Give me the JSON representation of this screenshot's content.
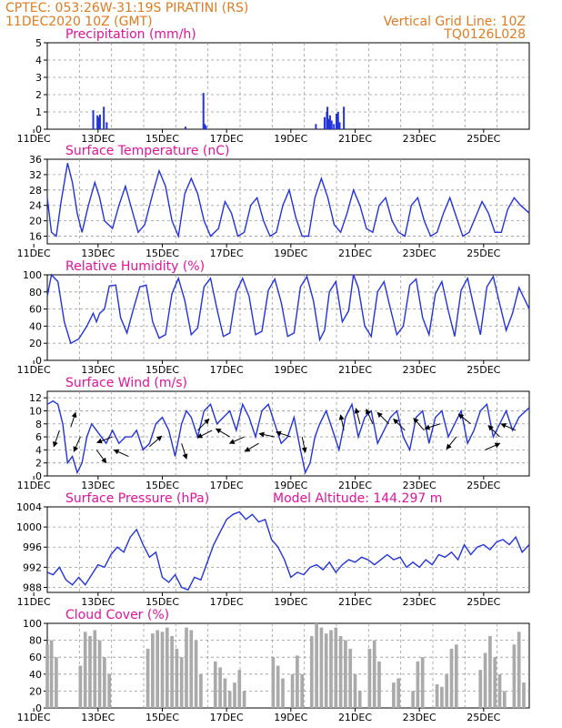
{
  "header": {
    "line1_left": "CPTEC:   053:26W-31:19S   PIRATINI (RS)",
    "line2_left": "11DEC2020 10Z (GMT)",
    "line1_right": "Vertical Grid Line: 10Z",
    "line2_right": "TQ0126L028"
  },
  "colors": {
    "header": "#e07b20",
    "title": "#e0139a",
    "line": "#2233dd",
    "bar": "#2233dd",
    "cloud": "#aaaaaa",
    "arrow": "#000000",
    "grid": "#999999"
  },
  "x_tick_labels": [
    "11DEC",
    "13DEC",
    "15DEC",
    "17DEC",
    "19DEC",
    "21DEC",
    "23DEC",
    "25DEC"
  ],
  "x_tick_days": [
    11,
    13,
    15,
    17,
    19,
    21,
    23,
    25
  ],
  "x_range_days": [
    11.42,
    26.42
  ],
  "panels": {
    "precip": {
      "title": "Precipitation (mm/h)",
      "yticks": [
        "0",
        "1",
        "2",
        "3",
        "4",
        "5"
      ],
      "ylim": [
        0,
        5
      ],
      "chart_data": {
        "type": "bar",
        "x_days": [
          12.85,
          12.98,
          13.03,
          13.06,
          13.18,
          13.27,
          15.72,
          16.28,
          16.32,
          16.36,
          19.78,
          20.05,
          20.12,
          20.14,
          20.18,
          20.22,
          20.27,
          20.34,
          20.42,
          20.47,
          20.52,
          20.65
        ],
        "values": [
          1.1,
          0.8,
          0.7,
          0.85,
          1.3,
          0.4,
          0.15,
          2.1,
          0.3,
          0.2,
          0.3,
          0.7,
          1.0,
          1.3,
          0.6,
          0.8,
          0.5,
          0.3,
          0.9,
          1.0,
          0.4,
          1.3
        ]
      }
    },
    "temp": {
      "title": "Surface Temperature (nC)",
      "yticks": [
        "16",
        "20",
        "24",
        "28",
        "32",
        "36"
      ],
      "ylim": [
        14,
        36
      ],
      "chart_data": {
        "type": "line",
        "x_days": [
          11.42,
          11.55,
          11.7,
          11.85,
          12.05,
          12.2,
          12.35,
          12.5,
          12.7,
          12.9,
          13.05,
          13.2,
          13.45,
          13.65,
          13.85,
          14.05,
          14.25,
          14.45,
          14.7,
          14.9,
          15.1,
          15.3,
          15.5,
          15.7,
          15.9,
          16.1,
          16.3,
          16.5,
          16.75,
          16.95,
          17.15,
          17.35,
          17.55,
          17.75,
          17.95,
          18.15,
          18.35,
          18.55,
          18.75,
          18.95,
          19.15,
          19.35,
          19.55,
          19.75,
          19.95,
          20.15,
          20.35,
          20.55,
          20.75,
          20.95,
          21.15,
          21.35,
          21.55,
          21.75,
          21.95,
          22.15,
          22.35,
          22.55,
          22.75,
          22.95,
          23.15,
          23.35,
          23.55,
          23.75,
          23.95,
          24.15,
          24.35,
          24.55,
          24.75,
          24.95,
          25.15,
          25.35,
          25.55,
          25.75,
          25.95,
          26.15,
          26.42
        ],
        "values": [
          26,
          17,
          16,
          25,
          35,
          30,
          22,
          17,
          24,
          30,
          26,
          20,
          18,
          24,
          29,
          23,
          17,
          19,
          27,
          33,
          29,
          20,
          16,
          27,
          31,
          27,
          20,
          16,
          18,
          25,
          22,
          16,
          17,
          24,
          26,
          20,
          16,
          17,
          24,
          28,
          21,
          16,
          16,
          26,
          31,
          26,
          19,
          17,
          22,
          28,
          24,
          18,
          17,
          24,
          26,
          20,
          17,
          16,
          24,
          26,
          20,
          16,
          17,
          22,
          26,
          21,
          16,
          17,
          21,
          25,
          22,
          17,
          17,
          23,
          26,
          24,
          22
        ]
      }
    },
    "rh": {
      "title": "Relative Humidity (%)",
      "yticks": [
        "0",
        "20",
        "40",
        "60",
        "80",
        "100"
      ],
      "ylim": [
        0,
        100
      ],
      "chart_data": {
        "type": "line",
        "x_days": [
          11.42,
          11.55,
          11.75,
          11.95,
          12.15,
          12.4,
          12.65,
          12.85,
          12.95,
          13.05,
          13.2,
          13.35,
          13.55,
          13.7,
          13.9,
          14.1,
          14.3,
          14.5,
          14.7,
          14.9,
          15.1,
          15.3,
          15.5,
          15.7,
          15.9,
          16.1,
          16.3,
          16.5,
          16.7,
          16.9,
          17.1,
          17.3,
          17.5,
          17.7,
          17.9,
          18.1,
          18.3,
          18.5,
          18.7,
          18.9,
          19.1,
          19.3,
          19.5,
          19.7,
          19.9,
          20.05,
          20.2,
          20.4,
          20.6,
          20.8,
          20.95,
          21.1,
          21.3,
          21.5,
          21.7,
          21.9,
          22.1,
          22.3,
          22.5,
          22.7,
          22.9,
          23.1,
          23.3,
          23.5,
          23.7,
          23.9,
          24.1,
          24.3,
          24.5,
          24.7,
          24.9,
          25.1,
          25.3,
          25.5,
          25.7,
          25.9,
          26.1,
          26.42
        ],
        "values": [
          75,
          100,
          92,
          45,
          20,
          25,
          40,
          55,
          45,
          55,
          60,
          87,
          88,
          50,
          32,
          60,
          86,
          88,
          45,
          26,
          30,
          78,
          96,
          70,
          30,
          38,
          86,
          96,
          60,
          28,
          32,
          80,
          96,
          75,
          30,
          34,
          82,
          95,
          68,
          28,
          32,
          86,
          98,
          70,
          24,
          35,
          80,
          92,
          45,
          58,
          100,
          85,
          40,
          28,
          80,
          92,
          60,
          30,
          40,
          88,
          95,
          50,
          30,
          78,
          92,
          58,
          28,
          82,
          96,
          62,
          30,
          86,
          98,
          66,
          35,
          55,
          85,
          60
        ]
      }
    },
    "wind": {
      "title": "Surface Wind (m/s)",
      "yticks": [
        "0",
        "2",
        "4",
        "6",
        "8",
        "10",
        "12"
      ],
      "ylim": [
        0,
        13
      ],
      "chart_data": {
        "type": "line",
        "x_days": [
          11.42,
          11.6,
          11.75,
          11.9,
          12.05,
          12.2,
          12.35,
          12.5,
          12.65,
          12.8,
          12.95,
          13.1,
          13.25,
          13.45,
          13.65,
          13.85,
          14.05,
          14.2,
          14.4,
          14.6,
          14.8,
          15.0,
          15.2,
          15.4,
          15.6,
          15.75,
          15.9,
          16.1,
          16.3,
          16.5,
          16.7,
          16.9,
          17.1,
          17.3,
          17.5,
          17.7,
          17.9,
          18.1,
          18.3,
          18.5,
          18.7,
          18.9,
          19.1,
          19.3,
          19.45,
          19.6,
          19.75,
          19.9,
          20.1,
          20.3,
          20.5,
          20.7,
          20.9,
          21.1,
          21.3,
          21.5,
          21.7,
          21.9,
          22.1,
          22.3,
          22.5,
          22.7,
          22.9,
          23.1,
          23.3,
          23.5,
          23.7,
          23.9,
          24.1,
          24.3,
          24.5,
          24.7,
          24.9,
          25.1,
          25.3,
          25.5,
          25.7,
          25.9,
          26.1,
          26.42
        ],
        "values": [
          11,
          11.5,
          11,
          8,
          2,
          3,
          0.5,
          2,
          6,
          8,
          7,
          6,
          5,
          7,
          5,
          6,
          6,
          7,
          4,
          5,
          8,
          9,
          7,
          3,
          8,
          10,
          9,
          6,
          10,
          11,
          8,
          9,
          10,
          7,
          11,
          9,
          6,
          10,
          11,
          8,
          5,
          6,
          9,
          4,
          0.5,
          2,
          6,
          8,
          10,
          7,
          4,
          9,
          11,
          6,
          9,
          10,
          5,
          7,
          9,
          10,
          6,
          4,
          9,
          10,
          5,
          9,
          10,
          6,
          8,
          10,
          5,
          7,
          10,
          11,
          6,
          8,
          10,
          7,
          9,
          10.5
        ],
        "arrows": [
          {
            "x": 11.8,
            "y": 7,
            "dx": -0.35,
            "dy": 1
          },
          {
            "x": 12.15,
            "y": 7.5,
            "dx": 0.3,
            "dy": -0.9
          },
          {
            "x": 12.45,
            "y": 6,
            "dx": -0.4,
            "dy": 0.9
          },
          {
            "x": 12.95,
            "y": 4,
            "dx": 0.6,
            "dy": 0.8
          },
          {
            "x": 13.45,
            "y": 6,
            "dx": -0.95,
            "dy": 0.35
          },
          {
            "x": 13.95,
            "y": 3,
            "dx": -0.9,
            "dy": -0.4
          },
          {
            "x": 14.6,
            "y": 4.5,
            "dx": 0.75,
            "dy": -0.65
          },
          {
            "x": 15.6,
            "y": 5,
            "dx": 0.3,
            "dy": 0.95
          },
          {
            "x": 16.1,
            "y": 7,
            "dx": 0.7,
            "dy": -0.7
          },
          {
            "x": 16.55,
            "y": 7,
            "dx": -0.9,
            "dy": 0.45
          },
          {
            "x": 17.1,
            "y": 6,
            "dx": -0.85,
            "dy": -0.5
          },
          {
            "x": 17.55,
            "y": 6,
            "dx": -0.9,
            "dy": 0.4
          },
          {
            "x": 18.0,
            "y": 5,
            "dx": -0.85,
            "dy": 0.5
          },
          {
            "x": 18.5,
            "y": 6,
            "dx": -0.95,
            "dy": -0.2
          },
          {
            "x": 19.0,
            "y": 6,
            "dx": -0.9,
            "dy": -0.3
          },
          {
            "x": 19.35,
            "y": 6,
            "dx": 0.2,
            "dy": 0.95
          },
          {
            "x": 20.65,
            "y": 7,
            "dx": -0.2,
            "dy": -0.95
          },
          {
            "x": 21.15,
            "y": 8,
            "dx": -0.25,
            "dy": -0.95
          },
          {
            "x": 21.55,
            "y": 8,
            "dx": -0.4,
            "dy": -0.9
          },
          {
            "x": 22.05,
            "y": 8,
            "dx": -0.7,
            "dy": -0.7
          },
          {
            "x": 22.55,
            "y": 7,
            "dx": -0.7,
            "dy": -0.7
          },
          {
            "x": 23.15,
            "y": 7,
            "dx": -0.65,
            "dy": -0.75
          },
          {
            "x": 23.65,
            "y": 8,
            "dx": -0.95,
            "dy": 0.3
          },
          {
            "x": 24.15,
            "y": 6,
            "dx": -0.6,
            "dy": 0.75
          },
          {
            "x": 24.6,
            "y": 8,
            "dx": -0.75,
            "dy": -0.6
          },
          {
            "x": 25.05,
            "y": 4,
            "dx": 0.9,
            "dy": -0.4
          },
          {
            "x": 25.5,
            "y": 6,
            "dx": -0.7,
            "dy": -0.7
          },
          {
            "x": 26.0,
            "y": 7,
            "dx": -0.9,
            "dy": -0.4
          }
        ]
      }
    },
    "pressure": {
      "title": "Surface Pressure (hPa)",
      "subtitle": "Model Altitude: 144.297 m",
      "yticks": [
        "988",
        "992",
        "996",
        "1000",
        "1004"
      ],
      "ylim": [
        987,
        1004
      ],
      "chart_data": {
        "type": "line",
        "x_days": [
          11.42,
          11.6,
          11.8,
          12.0,
          12.2,
          12.4,
          12.6,
          12.8,
          13.0,
          13.2,
          13.4,
          13.6,
          13.8,
          14.0,
          14.2,
          14.4,
          14.6,
          14.8,
          15.0,
          15.2,
          15.4,
          15.6,
          15.8,
          16.0,
          16.2,
          16.4,
          16.6,
          16.8,
          17.0,
          17.2,
          17.4,
          17.6,
          17.8,
          18.0,
          18.2,
          18.4,
          18.6,
          18.8,
          19.0,
          19.2,
          19.4,
          19.6,
          19.8,
          20.0,
          20.2,
          20.4,
          20.6,
          20.8,
          21.0,
          21.2,
          21.4,
          21.6,
          21.8,
          22.0,
          22.2,
          22.4,
          22.6,
          22.8,
          23.0,
          23.2,
          23.4,
          23.6,
          23.8,
          24.0,
          24.2,
          24.4,
          24.6,
          24.8,
          25.0,
          25.2,
          25.4,
          25.6,
          25.8,
          26.0,
          26.2,
          26.42
        ],
        "values": [
          991,
          990.5,
          992,
          989.5,
          988.5,
          990,
          988.5,
          990.5,
          992.5,
          992,
          994.5,
          996,
          995,
          998,
          999.5,
          996.5,
          994,
          995,
          990,
          989,
          990.5,
          988,
          987.5,
          990,
          989.5,
          993,
          996.5,
          999,
          1001.5,
          1002.5,
          1003,
          1001.5,
          1002.5,
          1001,
          1001.5,
          997.5,
          996,
          993.5,
          990,
          991,
          990.5,
          992,
          992.5,
          991.5,
          993,
          991,
          992.5,
          993.5,
          993,
          994,
          993.5,
          992.5,
          993.5,
          994.5,
          993.5,
          994,
          992,
          993,
          992,
          993.5,
          992.5,
          994.5,
          994,
          995,
          993.5,
          996.5,
          994.5,
          996,
          996.5,
          995.5,
          997,
          997.5,
          996.5,
          998,
          995,
          996.5
        ]
      }
    },
    "cloud": {
      "title": "Cloud Cover (%)",
      "yticks": [
        "0",
        "20",
        "40",
        "60",
        "80",
        "100"
      ],
      "ylim": [
        0,
        100
      ],
      "chart_data": {
        "type": "bar",
        "x_days": [
          11.42,
          11.55,
          11.7,
          11.85,
          12.0,
          12.15,
          12.3,
          12.45,
          12.6,
          12.75,
          12.9,
          13.05,
          13.2,
          13.35,
          13.5,
          13.65,
          13.8,
          13.95,
          14.1,
          14.25,
          14.4,
          14.55,
          14.7,
          14.85,
          15.0,
          15.15,
          15.3,
          15.45,
          15.6,
          15.75,
          15.9,
          16.05,
          16.2,
          16.35,
          16.5,
          16.65,
          16.8,
          16.95,
          17.1,
          17.25,
          17.4,
          17.55,
          17.7,
          17.85,
          18.0,
          18.15,
          18.3,
          18.45,
          18.6,
          18.75,
          18.9,
          19.05,
          19.2,
          19.35,
          19.5,
          19.65,
          19.8,
          19.95,
          20.1,
          20.25,
          20.4,
          20.55,
          20.7,
          20.85,
          21.0,
          21.15,
          21.3,
          21.45,
          21.6,
          21.75,
          21.9,
          22.05,
          22.2,
          22.35,
          22.5,
          22.65,
          22.8,
          22.95,
          23.1,
          23.25,
          23.4,
          23.55,
          23.7,
          23.85,
          24.0,
          24.15,
          24.3,
          24.45,
          24.6,
          24.75,
          24.9,
          25.05,
          25.2,
          25.35,
          25.5,
          25.65,
          25.8,
          25.95,
          26.1,
          26.25
        ],
        "values": [
          75,
          80,
          60,
          0,
          0,
          0,
          0,
          50,
          90,
          85,
          92,
          80,
          60,
          40,
          0,
          0,
          0,
          0,
          0,
          0,
          0,
          70,
          88,
          92,
          90,
          95,
          85,
          70,
          60,
          95,
          92,
          80,
          40,
          0,
          0,
          55,
          48,
          35,
          20,
          30,
          45,
          20,
          0,
          0,
          0,
          0,
          0,
          60,
          50,
          35,
          0,
          40,
          62,
          40,
          0,
          85,
          100,
          95,
          88,
          92,
          95,
          85,
          80,
          70,
          40,
          20,
          0,
          70,
          80,
          55,
          0,
          0,
          30,
          35,
          0,
          0,
          20,
          55,
          60,
          0,
          0,
          28,
          25,
          40,
          70,
          75,
          0,
          0,
          0,
          0,
          45,
          65,
          85,
          60,
          40,
          20,
          0,
          75,
          90,
          30
        ]
      }
    }
  }
}
